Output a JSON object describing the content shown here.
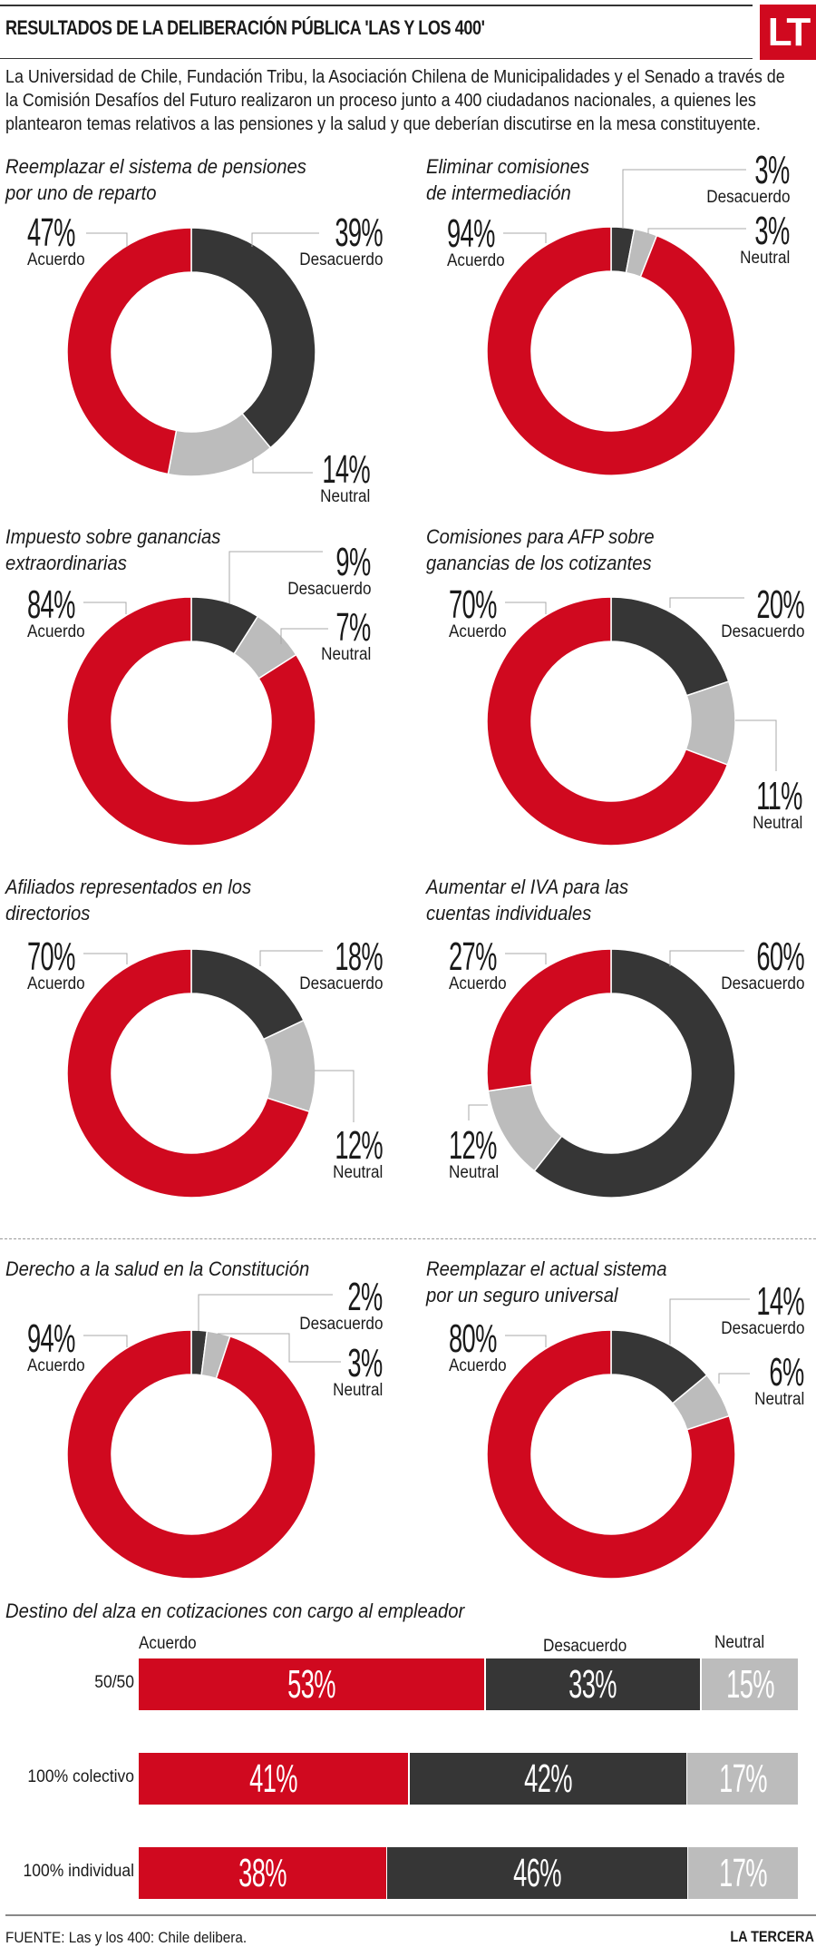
{
  "header": {
    "title": "RESULTADOS DE LA DELIBERACIÓN PÚBLICA 'LAS Y LOS 400'",
    "logo": "LT"
  },
  "intro": [
    "La Universidad de Chile, Fundación Tribu, la Asociación Chilena de Municipalidades y el Senado a través de",
    "la Comisión Desafíos del Futuro realizaron un proceso junto a 400 ciudadanos nacionales, a quienes les",
    "plantearon temas relativos a las pensiones y la salud y que deberían discutirse en la mesa constituyente."
  ],
  "colors": {
    "Acuerdo": "#d0091f",
    "Desacuerdo": "#363636",
    "Neutral": "#bcbcbc"
  },
  "chart_data": [
    {
      "type": "pie",
      "donut": true,
      "title": "Reemplazar el sistema de pensiones\npor uno de reparto",
      "categories": [
        "Acuerdo",
        "Desacuerdo",
        "Neutral"
      ],
      "values": [
        47,
        39,
        14
      ]
    },
    {
      "type": "pie",
      "donut": true,
      "title": "Eliminar comisiones\nde intermediación",
      "categories": [
        "Acuerdo",
        "Desacuerdo",
        "Neutral"
      ],
      "values": [
        94,
        3,
        3
      ]
    },
    {
      "type": "pie",
      "donut": true,
      "title": "Impuesto sobre ganancias\nextraordinarias",
      "categories": [
        "Acuerdo",
        "Desacuerdo",
        "Neutral"
      ],
      "values": [
        84,
        9,
        7
      ]
    },
    {
      "type": "pie",
      "donut": true,
      "title": "Comisiones para AFP sobre\nganancias de los cotizantes",
      "categories": [
        "Acuerdo",
        "Desacuerdo",
        "Neutral"
      ],
      "values": [
        70,
        20,
        11
      ]
    },
    {
      "type": "pie",
      "donut": true,
      "title": "Afiliados representados en los\ndirectorios",
      "categories": [
        "Acuerdo",
        "Desacuerdo",
        "Neutral"
      ],
      "values": [
        70,
        18,
        12
      ]
    },
    {
      "type": "pie",
      "donut": true,
      "title": "Aumentar el IVA para las\ncuentas individuales",
      "categories": [
        "Acuerdo",
        "Desacuerdo",
        "Neutral"
      ],
      "values": [
        27,
        60,
        12
      ]
    },
    {
      "type": "pie",
      "donut": true,
      "title": "Derecho a la salud en la Constitución",
      "categories": [
        "Acuerdo",
        "Desacuerdo",
        "Neutral"
      ],
      "values": [
        94,
        2,
        3
      ]
    },
    {
      "type": "pie",
      "donut": true,
      "title": "Reemplazar el actual sistema\npor un seguro universal",
      "categories": [
        "Acuerdo",
        "Desacuerdo",
        "Neutral"
      ],
      "values": [
        80,
        14,
        6
      ]
    },
    {
      "type": "bar",
      "stacked": true,
      "orientation": "horizontal",
      "title": "Destino del alza en cotizaciones con cargo al empleador",
      "categories": [
        "50/50",
        "100% colectivo",
        "100% individual"
      ],
      "series": [
        {
          "name": "Acuerdo",
          "values": [
            53,
            41,
            38
          ]
        },
        {
          "name": "Desacuerdo",
          "values": [
            33,
            42,
            46
          ]
        },
        {
          "name": "Neutral",
          "values": [
            15,
            17,
            17
          ]
        }
      ]
    }
  ],
  "footer": {
    "source": "FUENTE: Las y los 400: Chile delibera.",
    "brand": "LA TERCERA"
  }
}
